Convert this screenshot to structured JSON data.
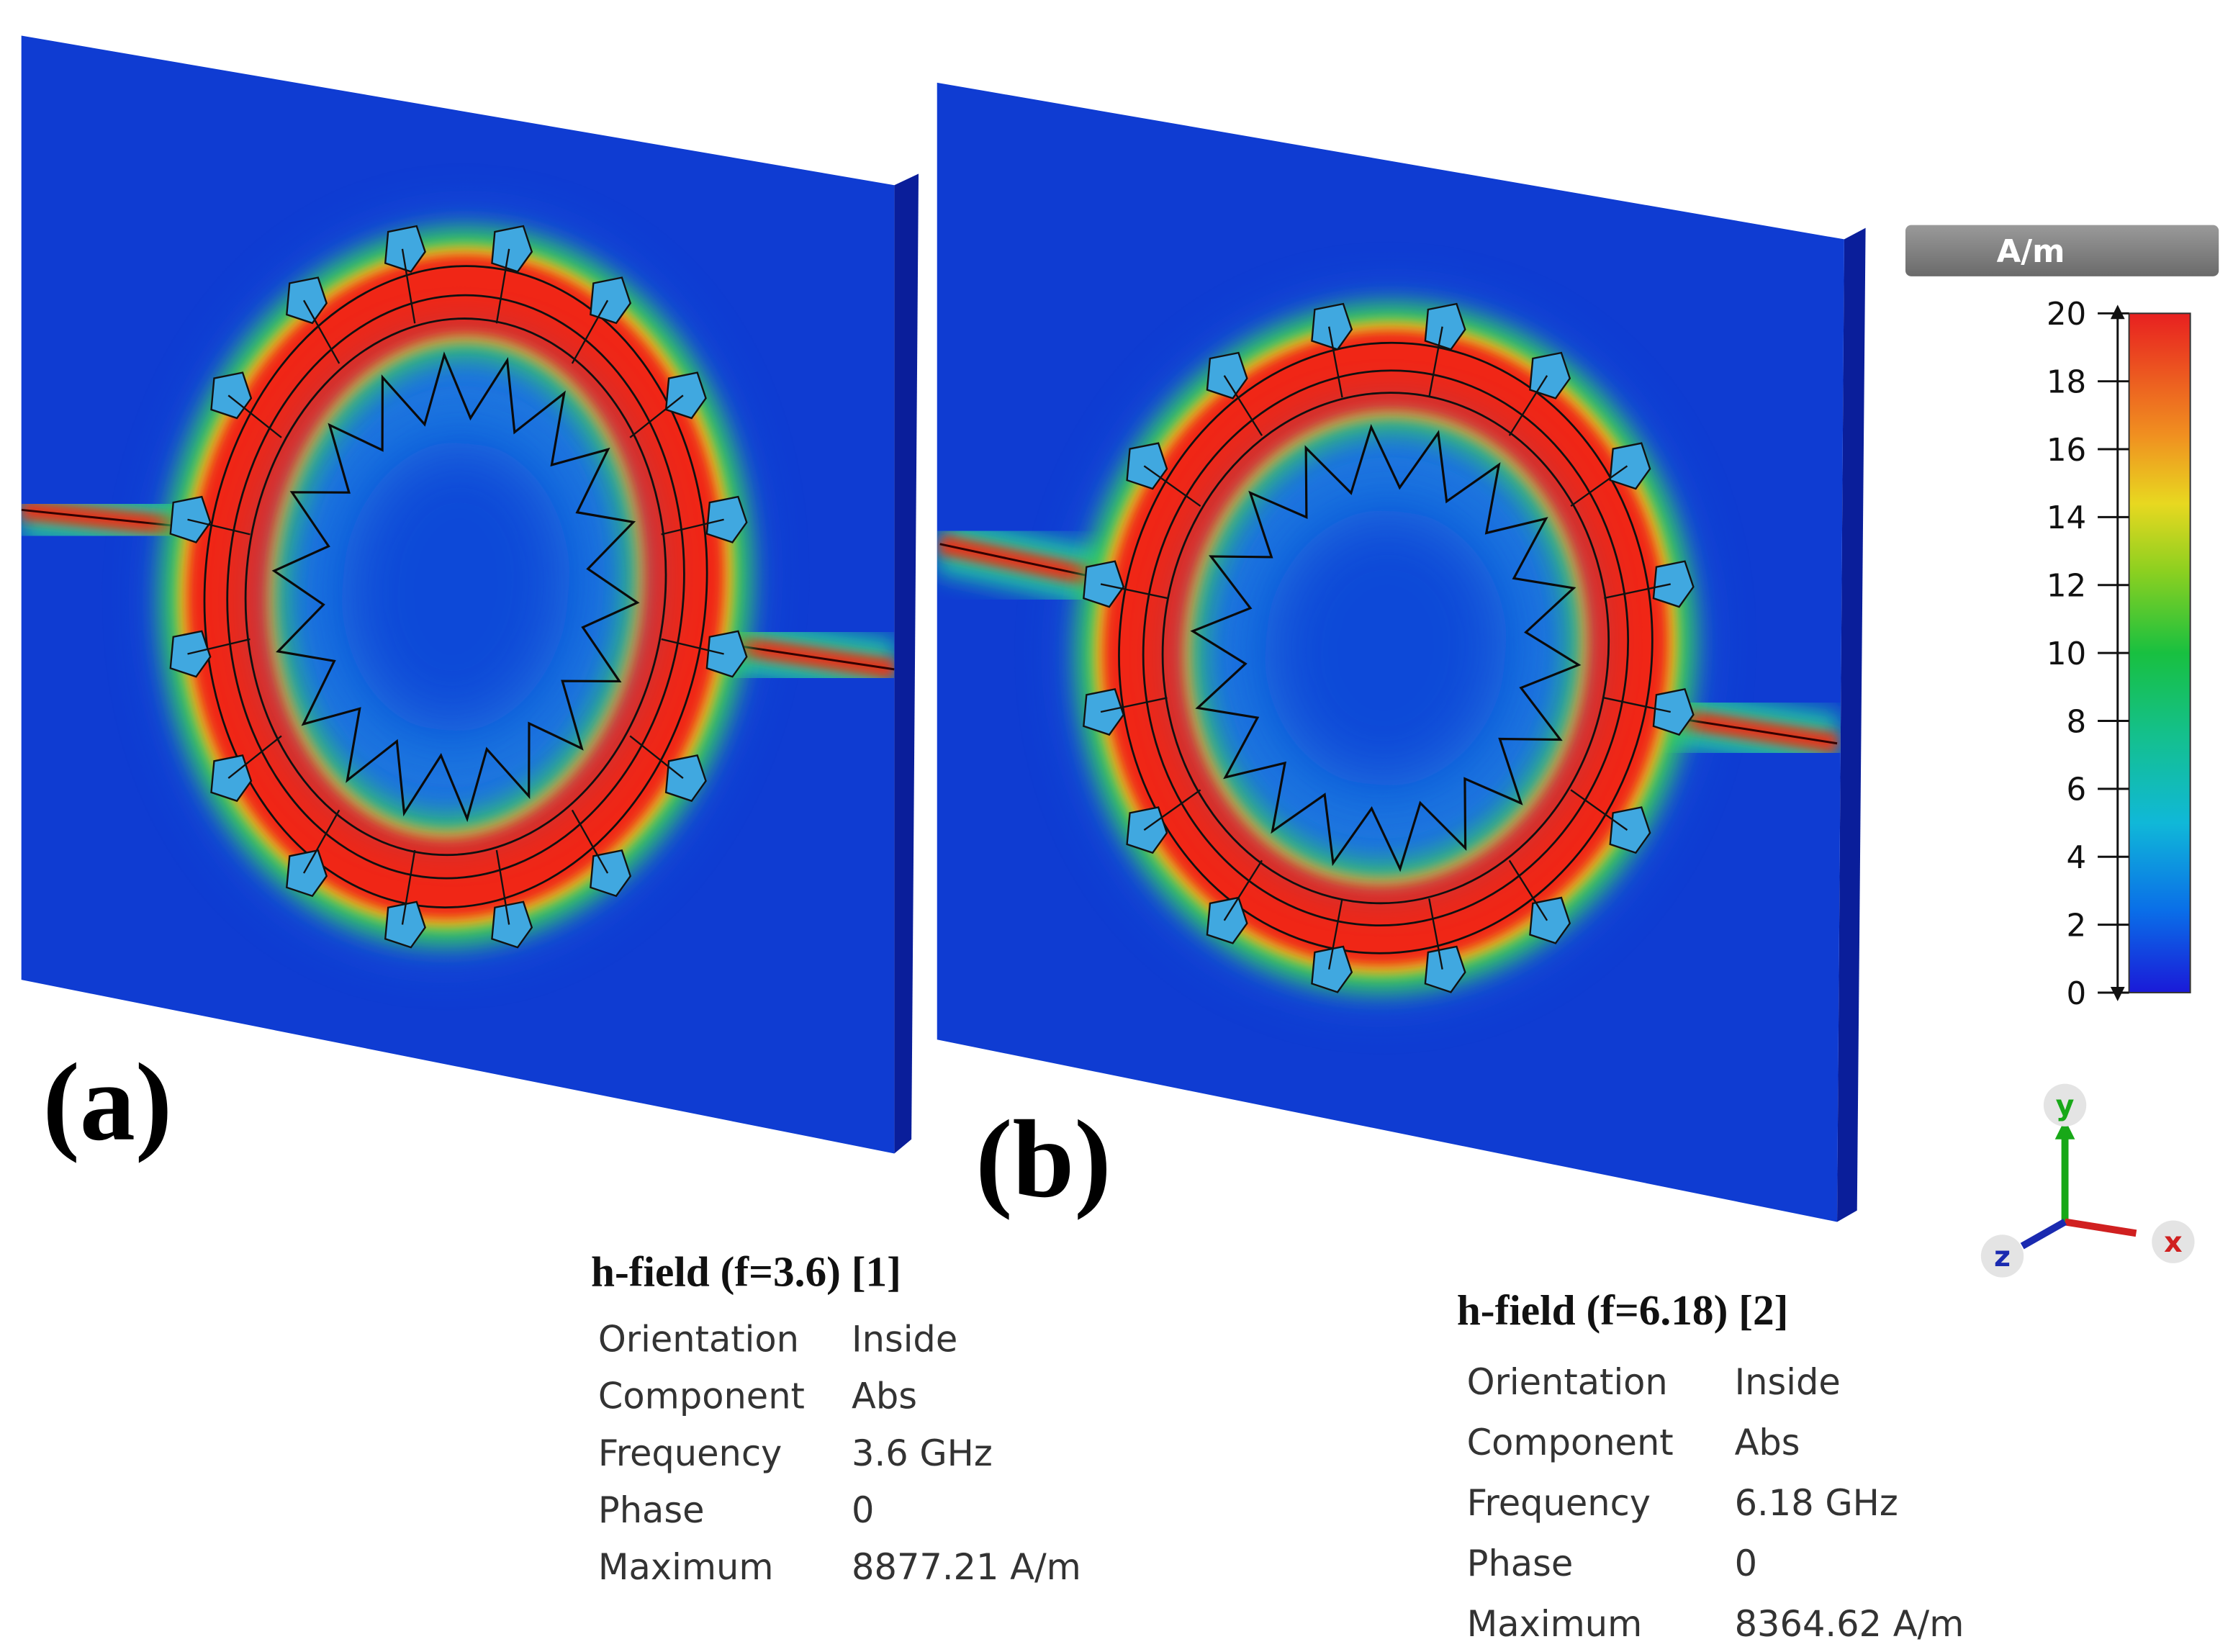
{
  "panels": [
    {
      "label": "(a)",
      "info": {
        "title": "h-field (f=3.6) [1]",
        "rows": [
          [
            "Orientation",
            "Inside"
          ],
          [
            "Component",
            "Abs"
          ],
          [
            "Frequency",
            "3.6 GHz"
          ],
          [
            "Phase",
            "0"
          ],
          [
            "Maximum",
            "8877.21 A/m"
          ]
        ]
      }
    },
    {
      "label": "(b)",
      "info": {
        "title": "h-field (f=6.18) [2]",
        "rows": [
          [
            "Orientation",
            "Inside"
          ],
          [
            "Component",
            "Abs"
          ],
          [
            "Frequency",
            "6.18 GHz"
          ],
          [
            "Phase",
            "0"
          ],
          [
            "Maximum",
            "8364.62 A/m"
          ]
        ]
      }
    }
  ],
  "colorbar": {
    "unit": "A/m",
    "lim": [
      0,
      20
    ],
    "ticks": [
      0,
      2,
      4,
      6,
      8,
      10,
      12,
      14,
      16,
      18,
      20
    ]
  },
  "axes": {
    "y": "y",
    "z": "z",
    "x": "x"
  }
}
